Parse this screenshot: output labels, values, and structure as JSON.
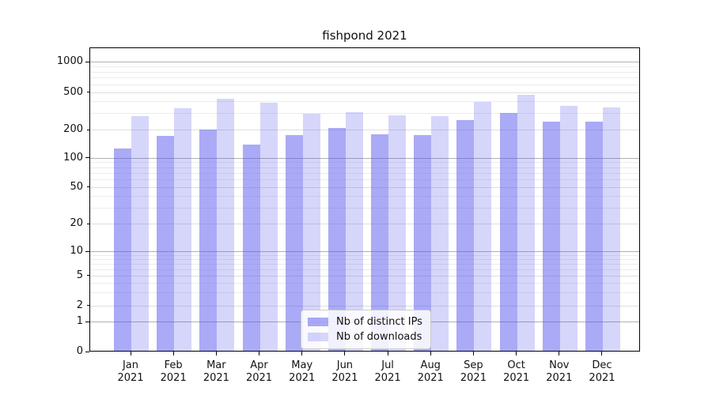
{
  "chart_data": {
    "type": "bar",
    "title": "fishpond 2021",
    "categories": [
      "Jan",
      "Feb",
      "Mar",
      "Apr",
      "May",
      "Jun",
      "Jul",
      "Aug",
      "Sep",
      "Oct",
      "Nov",
      "Dec"
    ],
    "category_year": "2021",
    "series": [
      {
        "name": "Nb of distinct IPs",
        "color": "rgba(85,85,238,0.5)",
        "values": [
          124,
          168,
          197,
          136,
          171,
          205,
          176,
          173,
          248,
          294,
          240,
          240
        ]
      },
      {
        "name": "Nb of downloads",
        "color": "rgba(85,85,238,0.24)",
        "values": [
          275,
          335,
          420,
          380,
          288,
          300,
          280,
          273,
          390,
          460,
          351,
          338
        ]
      }
    ],
    "y_ticks": [
      {
        "value": 1000,
        "label": "1000",
        "major": true
      },
      {
        "value": 500,
        "label": "500",
        "major": false
      },
      {
        "value": 200,
        "label": "200",
        "major": false
      },
      {
        "value": 100,
        "label": "100",
        "major": true
      },
      {
        "value": 50,
        "label": "50",
        "major": false
      },
      {
        "value": 20,
        "label": "20",
        "major": false
      },
      {
        "value": 10,
        "label": "10",
        "major": true
      },
      {
        "value": 5,
        "label": "5",
        "major": false
      },
      {
        "value": 2,
        "label": "2",
        "major": false
      },
      {
        "value": 1,
        "label": "1",
        "major": true
      },
      {
        "value": 0,
        "label": "0",
        "major": true
      }
    ],
    "yscale": "symlog",
    "ylim": [
      0,
      1400
    ],
    "grid": true,
    "legend_position": "lower center",
    "legend": [
      "Nb of distinct IPs",
      "Nb of downloads"
    ]
  }
}
